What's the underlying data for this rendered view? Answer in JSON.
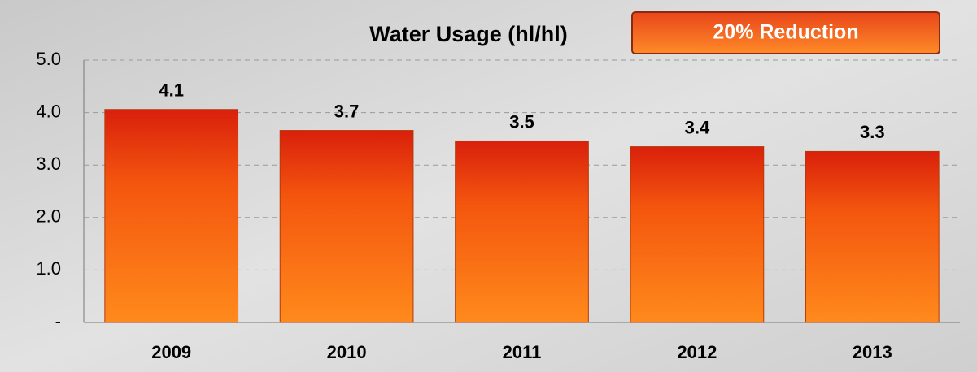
{
  "chart_data": {
    "type": "bar",
    "title": "Water Usage (hl/hl)",
    "annotation": "20% Reduction",
    "categories": [
      "2009",
      "2010",
      "2011",
      "2012",
      "2013"
    ],
    "values": [
      4.06,
      3.66,
      3.46,
      3.35,
      3.26
    ],
    "value_labels": [
      "4.1",
      "3.7",
      "3.5",
      "3.4",
      "3.3"
    ],
    "color": "#f26a10",
    "ylim": [
      0,
      5
    ],
    "yticks": [
      {
        "value": 0,
        "label": "-"
      },
      {
        "value": 1,
        "label": "1.0"
      },
      {
        "value": 2,
        "label": "2.0"
      },
      {
        "value": 3,
        "label": "3.0"
      },
      {
        "value": 4,
        "label": "4.0"
      },
      {
        "value": 5,
        "label": "5.0"
      }
    ],
    "grid": true
  }
}
